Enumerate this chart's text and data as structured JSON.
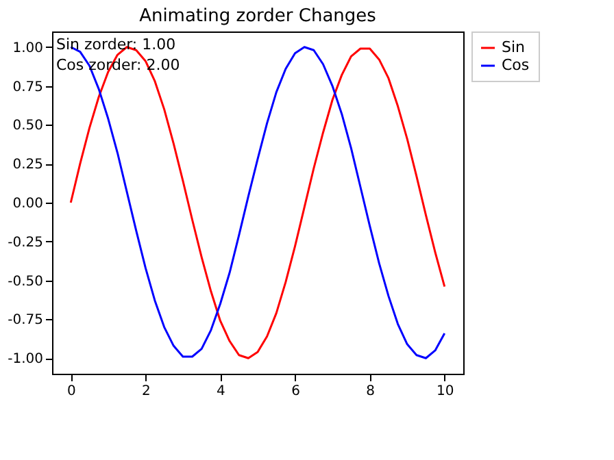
{
  "chart_data": {
    "type": "line",
    "title": "Animating zorder Changes",
    "x": [
      0,
      0.25,
      0.5,
      0.75,
      1,
      1.25,
      1.5,
      1.75,
      2,
      2.25,
      2.5,
      2.75,
      3,
      3.25,
      3.5,
      3.75,
      4,
      4.25,
      4.5,
      4.75,
      5,
      5.25,
      5.5,
      5.75,
      6,
      6.25,
      6.5,
      6.75,
      7,
      7.25,
      7.5,
      7.75,
      8,
      8.25,
      8.5,
      8.75,
      9,
      9.25,
      9.5,
      9.75,
      10
    ],
    "series": [
      {
        "name": "Sin",
        "color": "#ff0000",
        "values": [
          0,
          0.25,
          0.48,
          0.68,
          0.84,
          0.95,
          1.0,
          0.98,
          0.91,
          0.78,
          0.6,
          0.38,
          0.14,
          -0.11,
          -0.35,
          -0.57,
          -0.76,
          -0.89,
          -0.98,
          -1.0,
          -0.96,
          -0.86,
          -0.71,
          -0.51,
          -0.28,
          -0.03,
          0.22,
          0.45,
          0.66,
          0.82,
          0.94,
          0.99,
          0.99,
          0.92,
          0.8,
          0.62,
          0.41,
          0.17,
          -0.08,
          -0.32,
          -0.54
        ]
      },
      {
        "name": "Cos",
        "color": "#0000ff",
        "values": [
          1.0,
          0.97,
          0.88,
          0.73,
          0.54,
          0.32,
          0.07,
          -0.18,
          -0.42,
          -0.63,
          -0.8,
          -0.92,
          -0.99,
          -0.99,
          -0.94,
          -0.82,
          -0.65,
          -0.45,
          -0.21,
          0.04,
          0.28,
          0.51,
          0.71,
          0.86,
          0.96,
          1.0,
          0.98,
          0.89,
          0.75,
          0.57,
          0.35,
          0.1,
          -0.15,
          -0.39,
          -0.6,
          -0.78,
          -0.91,
          -0.98,
          -1.0,
          -0.95,
          -0.84
        ]
      }
    ],
    "xlim": [
      -0.5,
      10.5
    ],
    "xticks": [
      0,
      2,
      4,
      6,
      8,
      10
    ],
    "ylim": [
      -1.1,
      1.1
    ],
    "yticks": [
      {
        "value": -1,
        "label": "-1.00"
      },
      {
        "value": -0.75,
        "label": "-0.75"
      },
      {
        "value": -0.5,
        "label": "-0.50"
      },
      {
        "value": -0.25,
        "label": "-0.25"
      },
      {
        "value": 0,
        "label": "0.00"
      },
      {
        "value": 0.25,
        "label": "0.25"
      },
      {
        "value": 0.5,
        "label": "0.50"
      },
      {
        "value": 0.75,
        "label": "0.75"
      },
      {
        "value": 1,
        "label": "1.00"
      }
    ],
    "annotations": [
      "Sin zorder: 1.00",
      "Cos zorder: 2.00"
    ],
    "legend": "right",
    "grid": false,
    "marker": "none",
    "line_style": "solid"
  }
}
